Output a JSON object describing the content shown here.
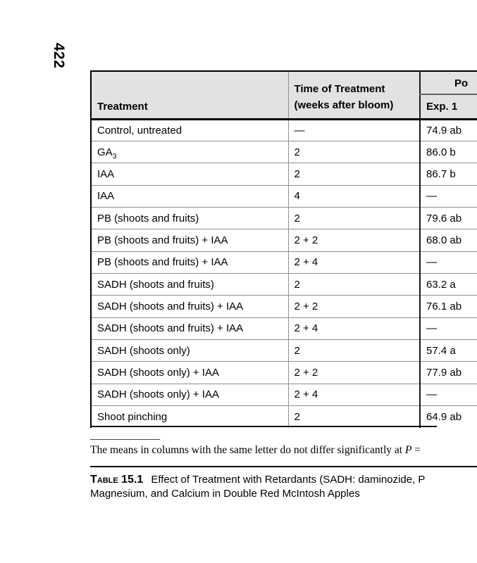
{
  "page_number": "422",
  "table": {
    "header": {
      "treatment": "Treatment",
      "time_line1": "Time of Treatment",
      "time_line2": "(weeks after bloom)",
      "group_partial": "Po",
      "exp1": "Exp. 1"
    },
    "rows": [
      {
        "treatment": "Control, untreated",
        "time": "—",
        "exp1": "74.9 ab"
      },
      {
        "treatment": "GA",
        "treatment_sub": "3",
        "time": "2",
        "exp1": "86.0 b"
      },
      {
        "treatment": "IAA",
        "time": "2",
        "exp1": "86.7 b"
      },
      {
        "treatment": "IAA",
        "time": "4",
        "exp1": "—"
      },
      {
        "treatment": "PB (shoots and fruits)",
        "time": "2",
        "exp1": "79.6 ab"
      },
      {
        "treatment": "PB (shoots and fruits) + IAA",
        "time": "2 + 2",
        "exp1": "68.0 ab"
      },
      {
        "treatment": "PB (shoots and fruits) + IAA",
        "time": "2 + 4",
        "exp1": "—"
      },
      {
        "treatment": "SADH (shoots and fruits)",
        "time": "2",
        "exp1": "63.2 a"
      },
      {
        "treatment": "SADH (shoots and fruits) + IAA",
        "time": "2 + 2",
        "exp1": "76.1 ab"
      },
      {
        "treatment": "SADH (shoots and fruits) + IAA",
        "time": "2 + 4",
        "exp1": "—"
      },
      {
        "treatment": "SADH (shoots only)",
        "time": "2",
        "exp1": "57.4 a"
      },
      {
        "treatment": "SADH (shoots only) + IAA",
        "time": "2 + 2",
        "exp1": "77.9 ab"
      },
      {
        "treatment": "SADH (shoots only) + IAA",
        "time": "2 + 4",
        "exp1": "—"
      },
      {
        "treatment": "Shoot pinching",
        "time": "2",
        "exp1": "64.9 ab"
      }
    ]
  },
  "footnote": {
    "pre": "The means in columns with the same letter do not differ significantly at ",
    "var": "P",
    "post": " ="
  },
  "caption": {
    "label": "Table 15.1",
    "line1": "Effect of Treatment with Retardants (SADH: daminozide, P",
    "line2": "Magnesium, and Calcium in Double Red McIntosh Apples"
  }
}
